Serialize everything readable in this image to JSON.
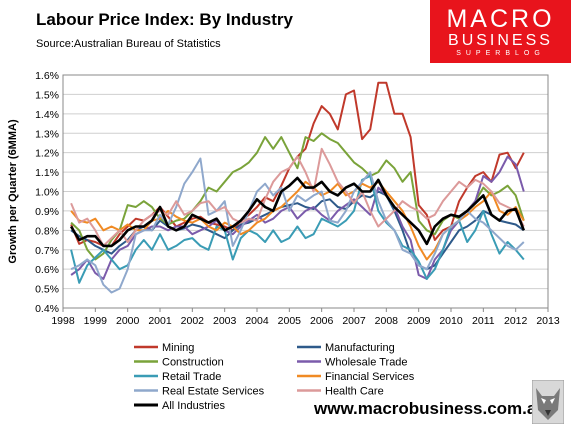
{
  "header": {
    "title": "Labour Price Index: By Industry",
    "source": "Source:Australian Bureau of Statistics"
  },
  "logo": {
    "line1": "MACRO",
    "line2": "BUSINESS",
    "line3": "SUPERBLOG",
    "color": "#e8141c"
  },
  "footer": {
    "url": "www.macrobusiness.com.au"
  },
  "chart_data": {
    "type": "line",
    "title": "Labour Price Index: By Industry",
    "subtitle": "Source:Australian Bureau of Statistics",
    "xlabel": "",
    "ylabel": "Growth per Quarter (6MMA)",
    "xlim": [
      1998,
      2013
    ],
    "ylim": [
      0.4,
      1.6
    ],
    "xticks": [
      1998,
      1999,
      2000,
      2001,
      2002,
      2003,
      2004,
      2005,
      2006,
      2007,
      2008,
      2009,
      2010,
      2011,
      2012,
      2013
    ],
    "xtick_labels": [
      "1998",
      "1999",
      "2000",
      "2001",
      "2002",
      "2003",
      "2004",
      "2005",
      "2006",
      "2007",
      "2008",
      "2009",
      "2010",
      "2011",
      "2012",
      "2013"
    ],
    "yticks": [
      0.4,
      0.5,
      0.6,
      0.7,
      0.8,
      0.9,
      1.0,
      1.1,
      1.2,
      1.3,
      1.4,
      1.5,
      1.6
    ],
    "ytick_labels": [
      "0.4%",
      "0.5%",
      "0.6%",
      "0.7%",
      "0.8%",
      "0.9%",
      "1.0%",
      "1.1%",
      "1.2%",
      "1.3%",
      "1.4%",
      "1.5%",
      "1.6%"
    ],
    "grid": "horizontal",
    "legend_position": "bottom",
    "x": [
      1998.25,
      1998.5,
      1998.75,
      1999.0,
      1999.25,
      1999.5,
      1999.75,
      2000.0,
      2000.25,
      2000.5,
      2000.75,
      2001.0,
      2001.25,
      2001.5,
      2001.75,
      2002.0,
      2002.25,
      2002.5,
      2002.75,
      2003.0,
      2003.25,
      2003.5,
      2003.75,
      2004.0,
      2004.25,
      2004.5,
      2004.75,
      2005.0,
      2005.25,
      2005.5,
      2005.75,
      2006.0,
      2006.25,
      2006.5,
      2006.75,
      2007.0,
      2007.25,
      2007.5,
      2007.75,
      2008.0,
      2008.25,
      2008.5,
      2008.75,
      2009.0,
      2009.25,
      2009.5,
      2009.75,
      2010.0,
      2010.25,
      2010.5,
      2010.75,
      2011.0,
      2011.25,
      2011.5,
      2011.75,
      2012.0,
      2012.25
    ],
    "series": [
      {
        "name": "Mining",
        "color": "#c0392b",
        "values": [
          0.83,
          0.73,
          0.75,
          0.74,
          0.72,
          0.72,
          0.78,
          0.82,
          0.86,
          0.85,
          0.88,
          0.92,
          0.87,
          0.82,
          0.84,
          0.86,
          0.87,
          0.84,
          0.83,
          0.82,
          0.8,
          0.85,
          0.88,
          0.92,
          0.97,
          0.95,
          1.03,
          1.12,
          1.18,
          1.22,
          1.35,
          1.44,
          1.4,
          1.32,
          1.5,
          1.52,
          1.27,
          1.32,
          1.56,
          1.56,
          1.4,
          1.4,
          1.28,
          0.93,
          0.88,
          0.75,
          0.8,
          0.82,
          0.95,
          1.02,
          1.08,
          1.1,
          1.05,
          1.19,
          1.2,
          1.12,
          1.2
        ]
      },
      {
        "name": "Manufacturing",
        "color": "#2e5a8a",
        "values": [
          0.8,
          0.77,
          0.75,
          0.72,
          0.7,
          0.68,
          0.72,
          0.75,
          0.8,
          0.82,
          0.8,
          0.85,
          0.82,
          0.8,
          0.81,
          0.83,
          0.82,
          0.8,
          0.78,
          0.76,
          0.8,
          0.83,
          0.84,
          0.86,
          0.88,
          0.9,
          0.92,
          0.93,
          0.94,
          0.92,
          0.91,
          0.95,
          0.96,
          0.92,
          0.91,
          0.95,
          0.98,
          0.97,
          1.0,
          0.98,
          0.9,
          0.8,
          0.68,
          0.62,
          0.6,
          0.62,
          0.68,
          0.74,
          0.8,
          0.82,
          0.85,
          0.9,
          0.88,
          0.85,
          0.84,
          0.83,
          0.8
        ]
      },
      {
        "name": "Construction",
        "color": "#7aa33a",
        "values": [
          0.84,
          0.8,
          0.7,
          0.65,
          0.68,
          0.75,
          0.8,
          0.93,
          0.92,
          0.95,
          0.92,
          0.86,
          0.83,
          0.85,
          0.86,
          0.9,
          0.95,
          1.02,
          1.0,
          1.05,
          1.1,
          1.12,
          1.15,
          1.2,
          1.28,
          1.22,
          1.28,
          1.2,
          1.12,
          1.28,
          1.26,
          1.3,
          1.27,
          1.25,
          1.2,
          1.15,
          1.12,
          1.08,
          1.1,
          1.16,
          1.12,
          1.05,
          1.1,
          0.85,
          0.8,
          0.78,
          0.85,
          0.88,
          0.86,
          0.9,
          0.95,
          1.02,
          0.98,
          1.0,
          1.03,
          0.98,
          0.85
        ]
      },
      {
        "name": "Wholesale Trade",
        "color": "#7b5bab",
        "values": [
          0.57,
          0.6,
          0.65,
          0.58,
          0.55,
          0.65,
          0.7,
          0.72,
          0.78,
          0.8,
          0.82,
          0.82,
          0.8,
          0.82,
          0.82,
          0.78,
          0.8,
          0.82,
          0.85,
          0.8,
          0.78,
          0.82,
          0.85,
          0.88,
          0.84,
          0.86,
          0.9,
          0.92,
          0.86,
          0.9,
          0.92,
          0.88,
          0.85,
          0.9,
          0.93,
          0.96,
          0.92,
          0.88,
          1.02,
          0.98,
          0.92,
          0.82,
          0.75,
          0.57,
          0.55,
          0.65,
          0.7,
          0.8,
          0.85,
          0.9,
          0.95,
          1.08,
          1.05,
          1.1,
          1.18,
          1.14,
          1.0
        ]
      },
      {
        "name": "Retail Trade",
        "color": "#3a9cb5",
        "values": [
          0.7,
          0.53,
          0.62,
          0.66,
          0.7,
          0.65,
          0.6,
          0.62,
          0.7,
          0.75,
          0.7,
          0.78,
          0.7,
          0.72,
          0.75,
          0.76,
          0.72,
          0.7,
          0.82,
          0.8,
          0.65,
          0.76,
          0.8,
          0.78,
          0.74,
          0.8,
          0.74,
          0.76,
          0.82,
          0.76,
          0.78,
          0.86,
          0.84,
          0.82,
          0.85,
          0.9,
          1.06,
          1.08,
          0.9,
          0.84,
          0.8,
          0.72,
          0.7,
          0.64,
          0.55,
          0.6,
          0.7,
          0.82,
          0.85,
          0.74,
          0.8,
          0.9,
          0.78,
          0.68,
          0.74,
          0.7,
          0.65
        ]
      },
      {
        "name": "Financial Services",
        "color": "#f08a24",
        "values": [
          0.9,
          0.85,
          0.84,
          0.86,
          0.8,
          0.82,
          0.8,
          0.83,
          0.8,
          0.8,
          0.85,
          0.86,
          0.9,
          0.87,
          0.85,
          0.84,
          0.86,
          0.82,
          0.8,
          0.84,
          0.82,
          0.78,
          0.8,
          0.84,
          0.86,
          0.9,
          0.92,
          0.96,
          1.0,
          1.05,
          1.02,
          0.98,
          1.0,
          1.04,
          0.98,
          1.0,
          1.04,
          1.02,
          1.05,
          1.0,
          0.95,
          0.9,
          0.82,
          0.72,
          0.65,
          0.7,
          0.78,
          0.82,
          0.85,
          0.88,
          0.92,
          0.95,
          1.0,
          0.9,
          0.88,
          0.92,
          0.85
        ]
      },
      {
        "name": "Real Estate Services",
        "color": "#8fa8cc",
        "values": [
          0.6,
          0.62,
          0.65,
          0.62,
          0.52,
          0.48,
          0.5,
          0.6,
          0.78,
          0.8,
          0.8,
          0.88,
          0.83,
          0.92,
          1.04,
          1.1,
          1.17,
          0.88,
          0.9,
          0.95,
          0.72,
          0.8,
          0.9,
          1.0,
          1.04,
          0.98,
          1.02,
          0.9,
          0.98,
          0.95,
          0.98,
          1.0,
          0.85,
          0.84,
          0.9,
          1.0,
          1.05,
          1.1,
          0.95,
          0.85,
          0.8,
          0.7,
          0.68,
          0.62,
          0.6,
          0.68,
          0.78,
          0.82,
          0.85,
          0.9,
          0.86,
          0.84,
          0.8,
          0.76,
          0.72,
          0.7,
          0.74
        ]
      },
      {
        "name": "Health Care",
        "color": "#dc9a9a",
        "values": [
          0.94,
          0.84,
          0.86,
          0.8,
          0.72,
          0.76,
          0.8,
          0.74,
          0.8,
          0.85,
          0.88,
          0.9,
          0.88,
          0.95,
          0.88,
          0.9,
          0.94,
          0.95,
          0.9,
          0.92,
          0.86,
          0.84,
          0.86,
          0.85,
          0.96,
          1.05,
          1.1,
          1.12,
          1.18,
          1.1,
          1.0,
          1.22,
          1.14,
          1.05,
          1.0,
          0.94,
          1.0,
          0.9,
          0.82,
          0.86,
          0.9,
          0.95,
          0.92,
          0.9,
          0.86,
          0.88,
          0.95,
          1.0,
          1.05,
          1.02,
          1.06,
          1.04,
          1.0,
          0.94,
          0.92,
          0.9,
          0.82
        ]
      },
      {
        "name": "All Industries",
        "color": "#000000",
        "values": [
          0.82,
          0.75,
          0.77,
          0.77,
          0.72,
          0.72,
          0.75,
          0.8,
          0.82,
          0.82,
          0.85,
          0.92,
          0.82,
          0.8,
          0.82,
          0.88,
          0.86,
          0.84,
          0.86,
          0.8,
          0.82,
          0.85,
          0.9,
          0.96,
          0.92,
          0.9,
          1.0,
          1.03,
          1.07,
          1.02,
          1.02,
          1.05,
          1.0,
          0.98,
          1.02,
          1.04,
          1.0,
          1.0,
          1.06,
          0.98,
          0.92,
          0.88,
          0.84,
          0.8,
          0.73,
          0.82,
          0.86,
          0.88,
          0.87,
          0.9,
          0.94,
          0.98,
          0.88,
          0.85,
          0.9,
          0.91,
          0.8
        ]
      }
    ]
  }
}
